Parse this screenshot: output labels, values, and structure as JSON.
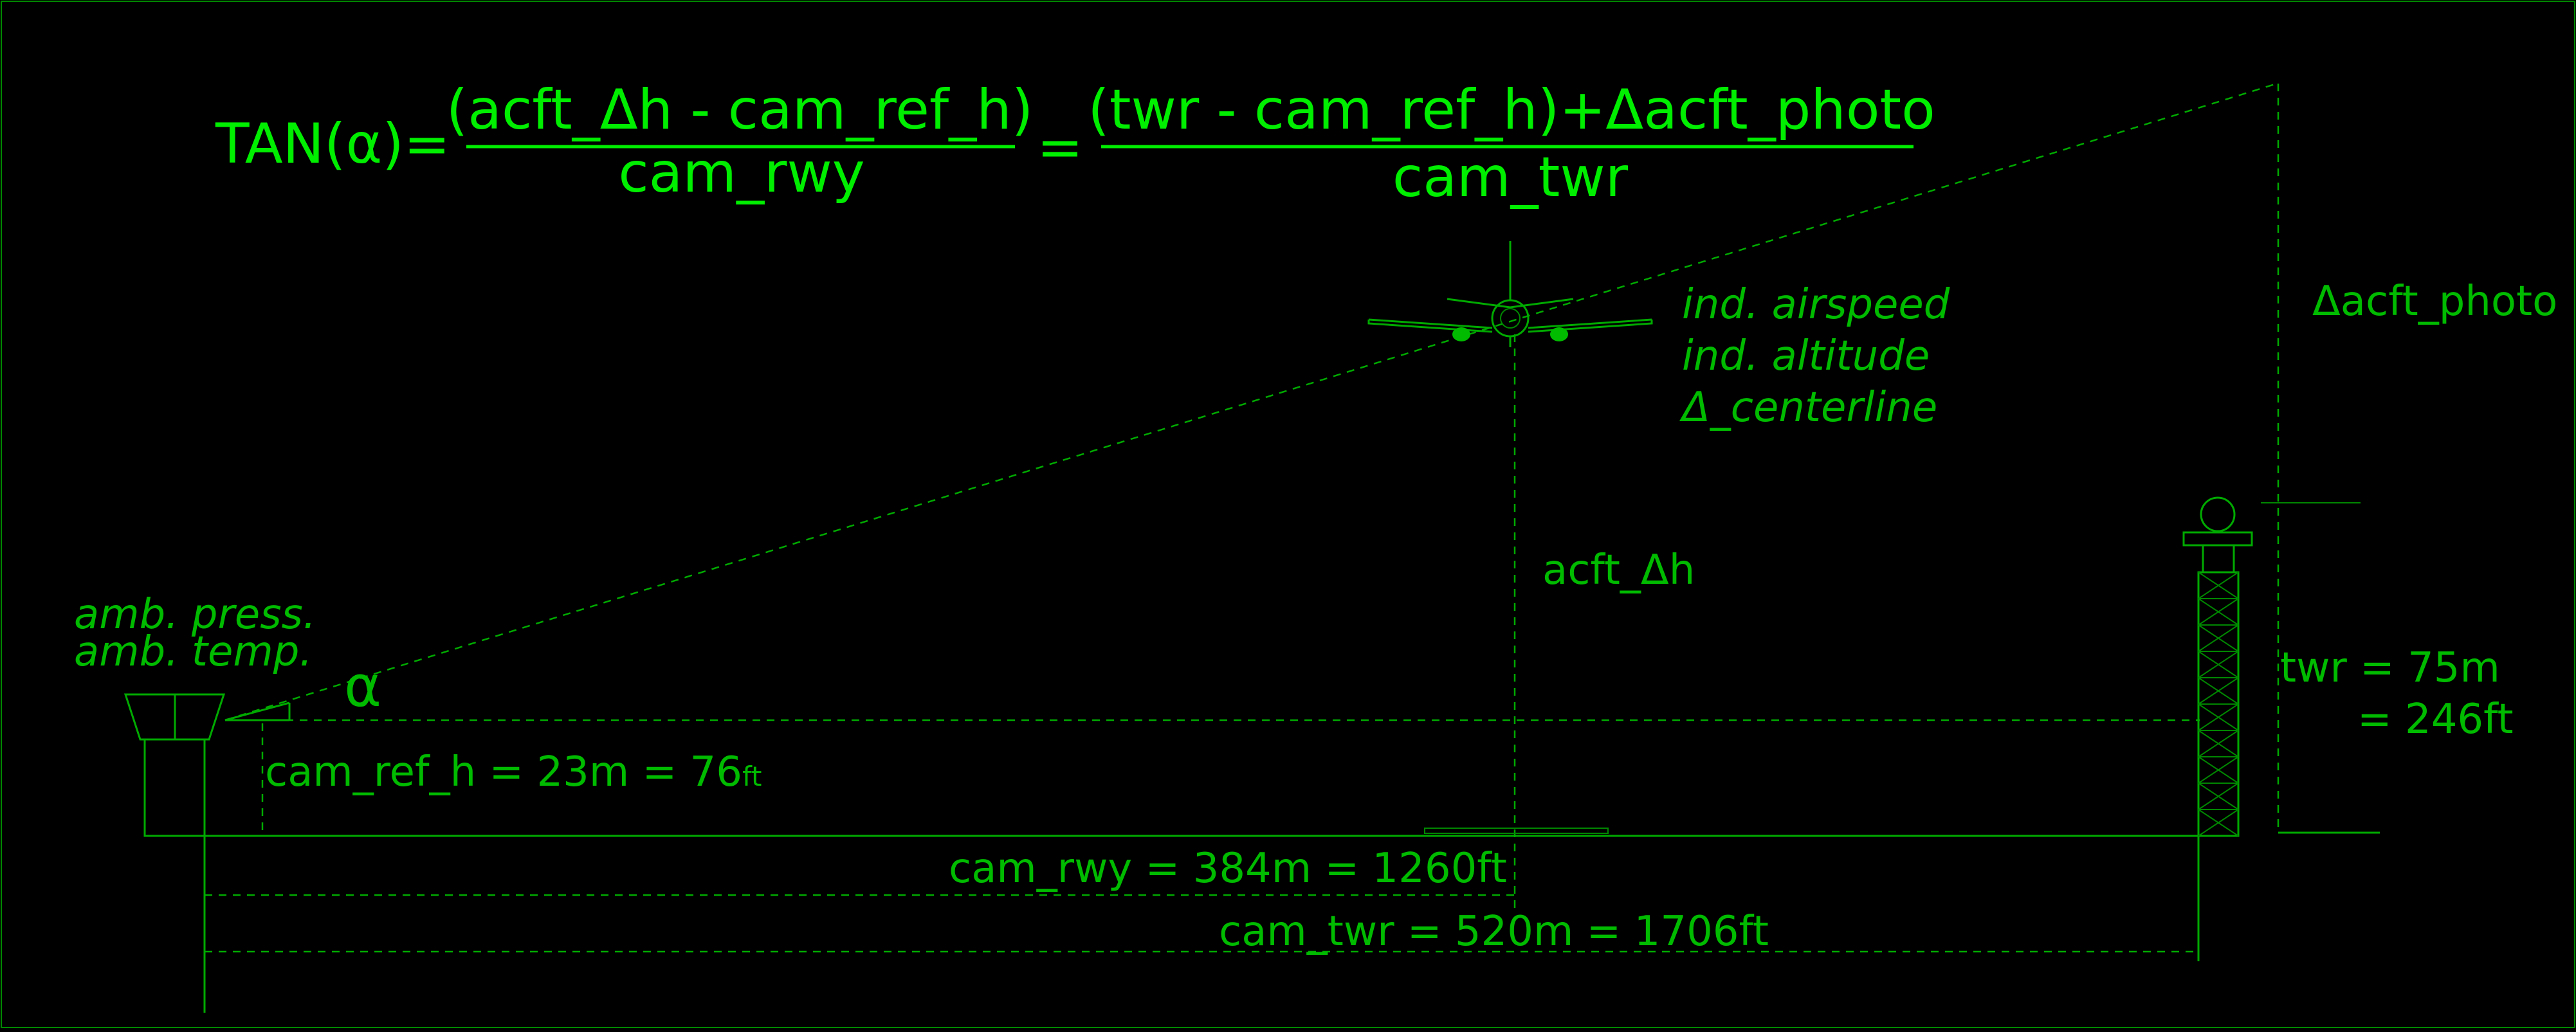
{
  "equation": {
    "lhs": "TAN(α)=",
    "num1": "(acft_Δh - cam_ref_h)",
    "den1": "cam_rwy",
    "equals": "=",
    "num2": "(twr - cam_ref_h)+Δacft_photo",
    "den2": "cam_twr"
  },
  "aircraft_info": {
    "line1": "ind. airspeed",
    "line2": "ind. altitude",
    "line3": "Δ_centerline"
  },
  "camera_info": {
    "line1": "amb. press.",
    "line2": "amb. temp."
  },
  "labels": {
    "alpha": "α",
    "delta_acft_photo": "Δacft_photo",
    "acft_dh": "acft_Δh",
    "cam_ref_h": "cam_ref_h = 23m = 76",
    "cam_ref_h_unit": "ft",
    "twr_line1": "twr = 75m",
    "twr_line2": "= 246ft",
    "cam_rwy": "cam_rwy = 384m = 1260ft",
    "cam_twr": "cam_twr = 520m = 1706ft"
  },
  "colors": {
    "background": "#000000",
    "bright_green": "#00ee00",
    "green": "#00bb00",
    "line_green": "#00aa00"
  }
}
